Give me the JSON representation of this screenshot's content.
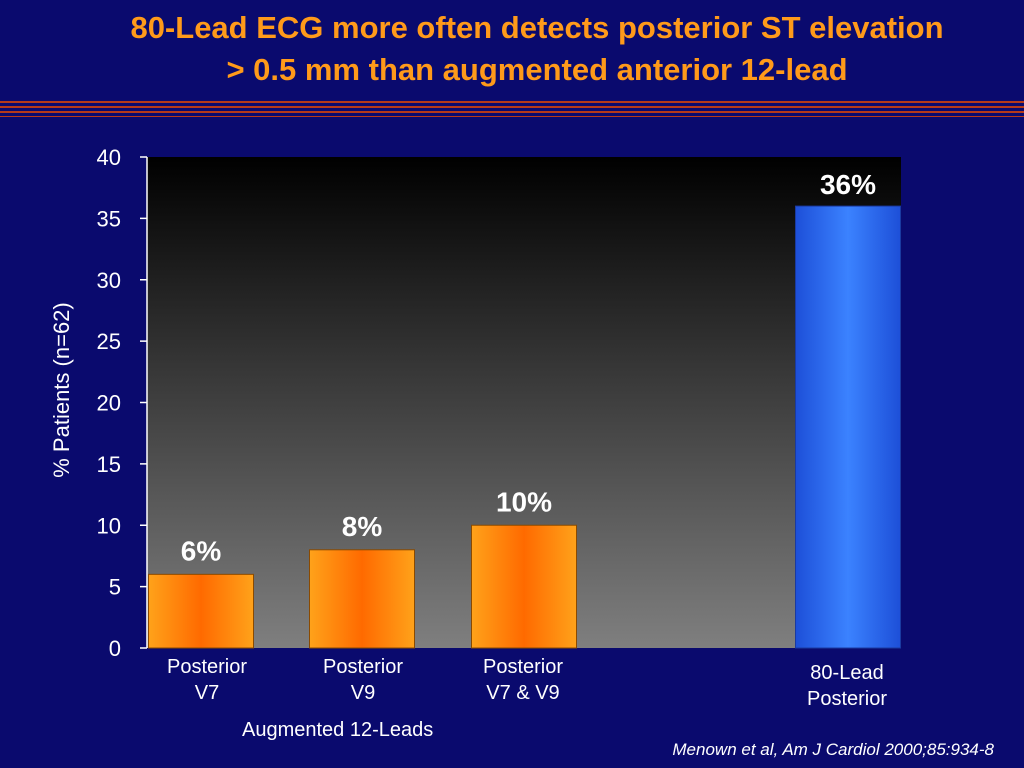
{
  "title": {
    "line1": "80-Lead ECG more often detects posterior ST elevation",
    "line2": "> 0.5 mm than augmented  anterior 12-lead"
  },
  "citation": "Menown et al, Am J Cardiol 2000;85:934-8",
  "colors": {
    "background": "#0a0a6e",
    "title": "#ff9a1a",
    "rule": "#b53a1a",
    "orange_bar": "#ff8c00",
    "blue_bar": "#2b6cf0"
  },
  "chart_data": {
    "type": "bar",
    "title": "",
    "ylabel": "% Patients  (n=62)",
    "ylim": [
      0,
      40
    ],
    "yticks": [
      "0",
      "5",
      "10",
      "15",
      "20",
      "25",
      "30",
      "35",
      "40"
    ],
    "group_label": "Augmented 12-Leads",
    "categories": [
      {
        "line1": "Posterior",
        "line2": "V7"
      },
      {
        "line1": "Posterior",
        "line2": "V9"
      },
      {
        "line1": "Posterior",
        "line2": "V7 & V9"
      },
      {
        "line1": "80-Lead",
        "line2": "Posterior"
      }
    ],
    "values": [
      6,
      8,
      10,
      36
    ],
    "data_labels": [
      "6%",
      "8%",
      "10%",
      "36%"
    ],
    "bar_colors": [
      "orange",
      "orange",
      "orange",
      "blue"
    ],
    "grid": false
  }
}
